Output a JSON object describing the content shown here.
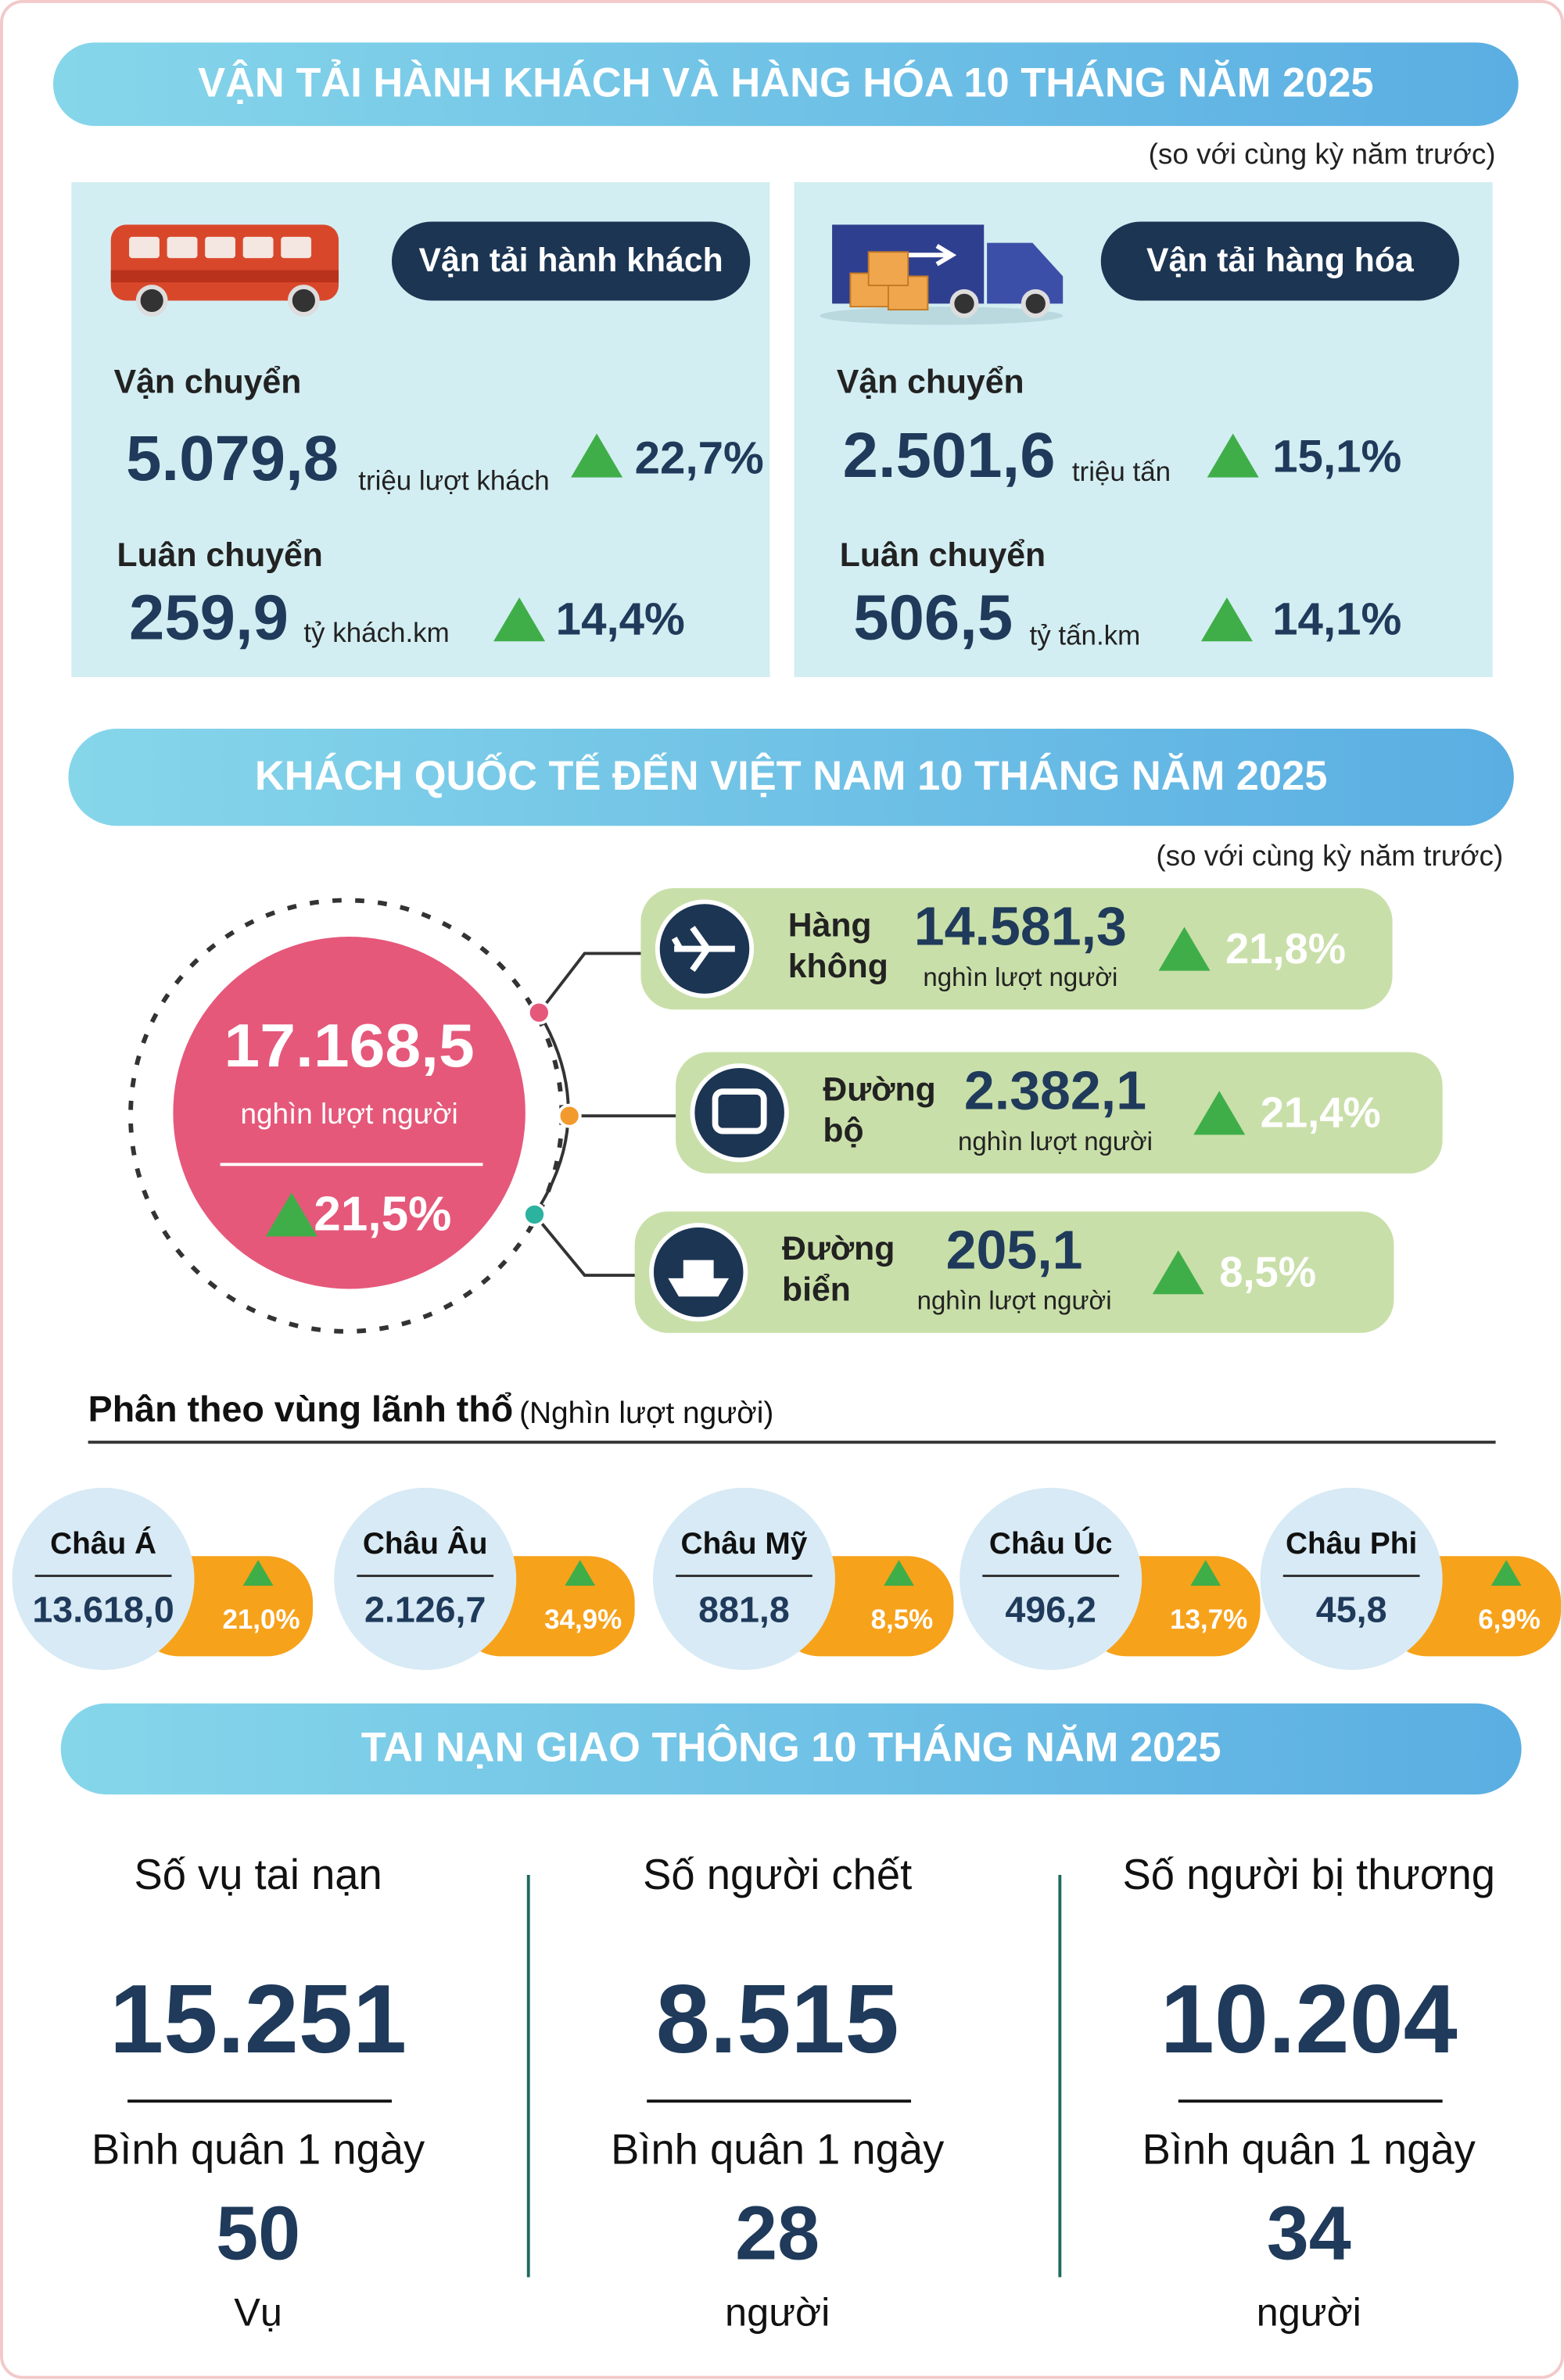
{
  "transport": {
    "title": "VẬN TẢI HÀNH KHÁCH VÀ HÀNG HÓA 10 THÁNG NĂM 2025",
    "note": "(so với cùng kỳ năm trước)",
    "passenger": {
      "label": "Vận tải hành khách",
      "carried_label": "Vận chuyển",
      "carried_value": "5.079,8",
      "carried_unit": "triệu lượt khách",
      "carried_change": "22,7%",
      "rotation_label": "Luân chuyển",
      "rotation_value": "259,9",
      "rotation_unit": "tỷ khách.km",
      "rotation_change": "14,4%"
    },
    "cargo": {
      "label": "Vận tải hàng hóa",
      "carried_label": "Vận chuyển",
      "carried_value": "2.501,6",
      "carried_unit": "triệu tấn",
      "carried_change": "15,1%",
      "rotation_label": "Luân chuyển",
      "rotation_value": "506,5",
      "rotation_unit": "tỷ tấn.km",
      "rotation_change": "14,1%"
    }
  },
  "arrivals": {
    "title": "KHÁCH QUỐC TẾ ĐẾN VIỆT NAM 10 THÁNG NĂM 2025",
    "note": "(so với cùng kỳ năm trước)",
    "total": {
      "value": "17.168,5",
      "unit": "nghìn lượt người",
      "change": "21,5%"
    },
    "modes": [
      {
        "label": [
          "Hàng",
          "không"
        ],
        "value": "14.581,3",
        "unit": "nghìn lượt người",
        "change": "21,8%"
      },
      {
        "label": [
          "Đường",
          "bộ"
        ],
        "value": "2.382,1",
        "unit": "nghìn lượt người",
        "change": "21,4%"
      },
      {
        "label": [
          "Đường",
          "biển"
        ],
        "value": "205,1",
        "unit": "nghìn lượt người",
        "change": "8,5%"
      }
    ],
    "regions_title": "Phân theo vùng lãnh thổ",
    "regions_unit": "(Nghìn lượt người)",
    "regions": [
      {
        "name": "Châu Á",
        "value": "13.618,0",
        "change": "21,0%"
      },
      {
        "name": "Châu Âu",
        "value": "2.126,7",
        "change": "34,9%"
      },
      {
        "name": "Châu Mỹ",
        "value": "881,8",
        "change": "8,5%"
      },
      {
        "name": "Châu Úc",
        "value": "496,2",
        "change": "13,7%"
      },
      {
        "name": "Châu Phi",
        "value": "45,8",
        "change": "6,9%"
      }
    ]
  },
  "accidents": {
    "title": "TAI NẠN GIAO THÔNG 10 THÁNG NĂM 2025",
    "items": [
      {
        "label": "Số vụ tai nạn",
        "value": "15.251",
        "avg_label": "Bình quân 1 ngày",
        "avg_value": "50",
        "avg_unit": "Vụ"
      },
      {
        "label": "Số người chết",
        "value": "8.515",
        "avg_label": "Bình quân 1 ngày",
        "avg_value": "28",
        "avg_unit": "người"
      },
      {
        "label": "Số người bị thương",
        "value": "10.204",
        "avg_label": "Bình quân 1 ngày",
        "avg_value": "34",
        "avg_unit": "người"
      }
    ]
  }
}
